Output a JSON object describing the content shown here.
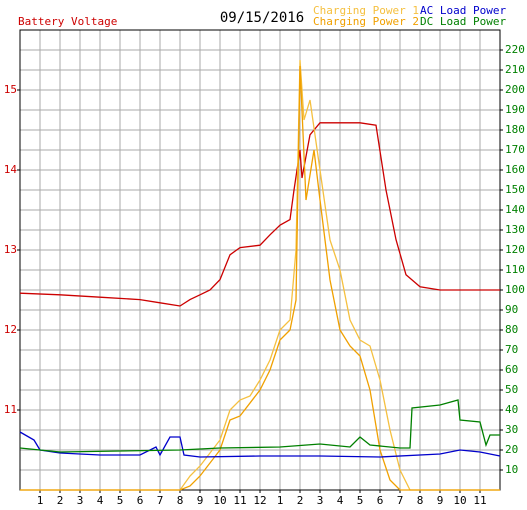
{
  "chart_data": {
    "type": "line",
    "title": "09/15/2016",
    "y_label": "Battery Voltage",
    "y_label_color": "#cc0000",
    "y2_color": "#008000",
    "xlim": [
      0,
      24
    ],
    "xticks": [
      1,
      2,
      3,
      4,
      5,
      6,
      7,
      8,
      9,
      10,
      11,
      12,
      {
        "value": 13,
        "label": "1"
      },
      {
        "value": 14,
        "label": "2"
      },
      {
        "value": 15,
        "label": "3"
      },
      {
        "value": 16,
        "label": "4"
      },
      {
        "value": 17,
        "label": "5"
      },
      {
        "value": 18,
        "label": "6"
      },
      {
        "value": 19,
        "label": "7"
      },
      {
        "value": 20,
        "label": "8"
      },
      {
        "value": 21,
        "label": "9"
      },
      {
        "value": 22,
        "label": "10"
      },
      {
        "value": 23,
        "label": "11"
      }
    ],
    "ylim": [
      10,
      15.75
    ],
    "yticks": [
      11,
      12,
      13,
      14,
      15
    ],
    "y2lim": [
      0,
      230
    ],
    "y2ticks": [
      10,
      20,
      30,
      40,
      50,
      60,
      70,
      80,
      90,
      100,
      110,
      120,
      130,
      140,
      150,
      160,
      170,
      180,
      190,
      200,
      210,
      220
    ],
    "grid": true,
    "series": [
      {
        "name": "Battery Voltage",
        "color": "#cc0000",
        "axis": "y",
        "legend": false,
        "x": [
          0,
          2,
          4,
          6,
          7,
          8,
          8.5,
          9,
          9.5,
          10,
          10.5,
          11,
          12,
          12.5,
          13,
          13.5,
          13.7,
          14,
          14.1,
          14.5,
          15,
          16,
          17,
          17.8,
          18.3,
          18.8,
          19.3,
          20,
          21,
          22,
          23,
          24
        ],
        "values": [
          12.46,
          12.44,
          12.41,
          12.38,
          12.34,
          12.3,
          12.38,
          12.44,
          12.5,
          12.63,
          12.94,
          13.03,
          13.06,
          13.19,
          13.31,
          13.38,
          13.75,
          14.25,
          13.9,
          14.44,
          14.59,
          14.59,
          14.59,
          14.56,
          13.75,
          13.13,
          12.69,
          12.54,
          12.5,
          12.5,
          12.5,
          12.5
        ]
      },
      {
        "name": "Charging Power 1",
        "color": "#f5c040",
        "axis": "y2",
        "x": [
          0,
          8,
          8.5,
          9,
          10,
          10.5,
          11,
          11.5,
          12,
          12.5,
          13,
          13.5,
          13.8,
          14,
          14.2,
          14.5,
          15,
          15.5,
          16,
          16.5,
          17,
          17.5,
          18,
          18.5,
          19,
          19.5,
          24
        ],
        "values": [
          0,
          0,
          7,
          12,
          25,
          40,
          45,
          47,
          55,
          65,
          80,
          85,
          120,
          215,
          185,
          195,
          160,
          125,
          110,
          85,
          75,
          72,
          55,
          30,
          10,
          0,
          0
        ]
      },
      {
        "name": "Charging Power 2",
        "color": "#f0a000",
        "axis": "y2",
        "x": [
          0,
          8,
          8.5,
          9,
          10,
          10.5,
          11,
          12,
          12.5,
          13,
          13.5,
          13.8,
          14,
          14.3,
          14.7,
          15,
          15.5,
          16,
          16.5,
          17,
          17.5,
          18,
          18.5,
          19,
          24
        ],
        "values": [
          0,
          0,
          2,
          7,
          20,
          35,
          37,
          50,
          60,
          75,
          80,
          95,
          212,
          145,
          170,
          145,
          105,
          80,
          72,
          67,
          50,
          20,
          5,
          0,
          0
        ]
      },
      {
        "name": "AC Load Power",
        "color": "#0000cc",
        "axis": "y2",
        "x": [
          0,
          0.7,
          1,
          2,
          4,
          6,
          6.8,
          7,
          7.5,
          8,
          8.2,
          9,
          12,
          15,
          18,
          21,
          22,
          23,
          24
        ],
        "values": [
          29,
          25,
          20,
          18.5,
          17.5,
          17.5,
          21.5,
          17.5,
          26.5,
          26.5,
          17.5,
          16.5,
          17,
          17,
          16.5,
          18,
          20,
          19,
          17
        ]
      },
      {
        "name": "DC Load Power",
        "color": "#008000",
        "axis": "y2",
        "x": [
          0,
          2,
          8,
          10,
          13,
          15,
          16.5,
          17,
          17.5,
          19,
          19.5,
          19.6,
          21,
          21.9,
          22,
          23,
          23.3,
          23.5,
          24
        ],
        "values": [
          21,
          19,
          20,
          21,
          21.5,
          23,
          21.5,
          26.5,
          22.5,
          21,
          21,
          41,
          42.5,
          45,
          35,
          34,
          22.5,
          27.5,
          27.5
        ]
      }
    ]
  }
}
